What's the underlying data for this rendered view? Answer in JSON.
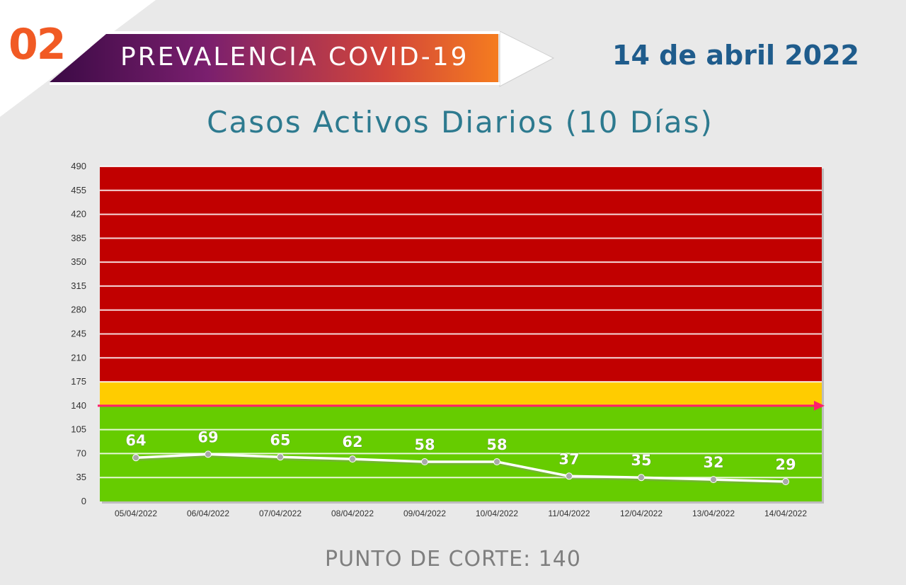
{
  "header": {
    "number": "02",
    "title": "PREVALENCIA COVID-19",
    "date": "14 de abril 2022"
  },
  "colors": {
    "red_zone": "#c10000",
    "yellow_zone": "#ffcc00",
    "green_zone": "#66cc00",
    "cutoff_line": "#ff1f6b",
    "series_line": "#ffffff",
    "accent_orange": "#f15a24"
  },
  "chart_data": {
    "type": "line",
    "title": "Casos Activos Diarios (10 Días)",
    "categories": [
      "05/04/2022",
      "06/04/2022",
      "07/04/2022",
      "08/04/2022",
      "09/04/2022",
      "10/04/2022",
      "11/04/2022",
      "12/04/2022",
      "13/04/2022",
      "14/04/2022"
    ],
    "values": [
      64,
      69,
      65,
      62,
      58,
      58,
      37,
      35,
      32,
      29
    ],
    "ylim": [
      0,
      490
    ],
    "yticks": [
      0,
      35,
      70,
      105,
      140,
      175,
      210,
      245,
      280,
      315,
      350,
      385,
      420,
      455,
      490
    ],
    "bands": [
      {
        "name": "verde",
        "from": 0,
        "to": 140
      },
      {
        "name": "amarillo",
        "from": 140,
        "to": 175
      },
      {
        "name": "rojo",
        "from": 175,
        "to": 490
      }
    ],
    "cutoff": 140,
    "grid": true,
    "legend": "none"
  },
  "footer": {
    "label": "PUNTO DE CORTE: 140"
  }
}
